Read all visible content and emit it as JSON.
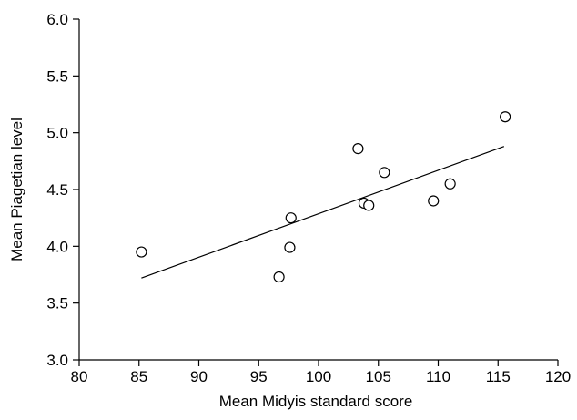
{
  "chart_data": {
    "type": "scatter",
    "title": "",
    "xlabel": "Mean Midyis standard score",
    "ylabel": "Mean Piagetian level",
    "xlim": [
      80,
      120
    ],
    "ylim": [
      3.0,
      6.0
    ],
    "xticks": [
      80,
      85,
      90,
      95,
      100,
      105,
      110,
      115,
      120
    ],
    "yticks": [
      3.0,
      3.5,
      4.0,
      4.5,
      5.0,
      5.5,
      6.0
    ],
    "xtick_labels": [
      "80",
      "85",
      "90",
      "95",
      "100",
      "105",
      "110",
      "115",
      "120"
    ],
    "ytick_labels": [
      "3.0",
      "3.5",
      "4.0",
      "4.5",
      "5.0",
      "5.5",
      "6.0"
    ],
    "grid": false,
    "legend": "none",
    "marker": "open-circle",
    "series": [
      {
        "x": [
          85.2,
          96.7,
          97.6,
          97.7,
          103.3,
          103.8,
          104.2,
          105.5,
          109.6,
          111.0,
          115.6
        ],
        "y": [
          3.95,
          3.73,
          3.99,
          4.25,
          4.86,
          4.38,
          4.36,
          4.65,
          4.4,
          4.55,
          5.14
        ]
      }
    ],
    "trendline": {
      "x": [
        85.2,
        115.5
      ],
      "y": [
        3.72,
        4.88
      ]
    },
    "colors": {
      "axis": "#000000",
      "marker_stroke": "#000000",
      "marker_fill": "#ffffff",
      "trendline": "#000000"
    }
  }
}
